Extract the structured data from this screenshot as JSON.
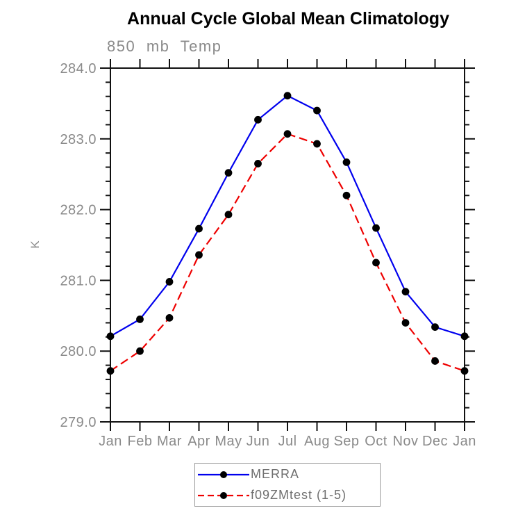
{
  "page": {
    "title": "Annual Cycle Global Mean Climatology",
    "subtitle": "850 mb Temp"
  },
  "chart_data": {
    "type": "line",
    "title": "Annual Cycle Global Mean Climatology",
    "subtitle": "850 mb Temp",
    "xlabel": "",
    "ylabel": "K",
    "categories": [
      "Jan",
      "Feb",
      "Mar",
      "Apr",
      "May",
      "Jun",
      "Jul",
      "Aug",
      "Sep",
      "Oct",
      "Nov",
      "Dec",
      "Jan"
    ],
    "series": [
      {
        "name": "MERRA",
        "color": "#0000ee",
        "line_style": "solid",
        "marker": "filled-circle",
        "marker_color": "#000000",
        "values": [
          280.21,
          280.45,
          280.98,
          281.73,
          282.52,
          283.27,
          283.61,
          283.4,
          282.67,
          281.74,
          280.84,
          280.34,
          280.21
        ]
      },
      {
        "name": "f09ZMtest (1-5)",
        "color": "#ee0000",
        "line_style": "dashed",
        "marker": "filled-circle",
        "marker_color": "#000000",
        "values": [
          279.72,
          280.0,
          280.47,
          281.36,
          281.93,
          282.65,
          283.07,
          282.93,
          282.2,
          281.25,
          280.4,
          279.86,
          279.72
        ]
      }
    ],
    "ylim": [
      279.0,
      284.0
    ],
    "ytick_major_interval": 1.0,
    "ytick_minor_interval": 0.2,
    "ytick_labels": [
      "279.0",
      "280.0",
      "281.0",
      "282.0",
      "283.0",
      "284.0"
    ],
    "grid": false,
    "legend_position": "bottom-center"
  },
  "colors": {
    "axis": "#111111",
    "tick_label": "#8a8a8a",
    "title": "#000000",
    "legend_border": "#9a9a9a"
  }
}
